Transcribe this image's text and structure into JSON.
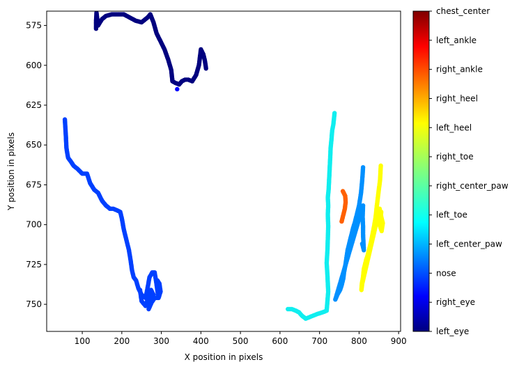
{
  "chart_data": {
    "type": "scatter",
    "title": "",
    "xlabel": "X position in pixels",
    "ylabel": "Y position in pixels",
    "xlim": [
      10,
      905
    ],
    "ylim": [
      767,
      566
    ],
    "y_inverted": true,
    "grid": false,
    "colormap": "jet",
    "x_ticks": [
      100,
      200,
      300,
      400,
      500,
      600,
      700,
      800,
      900
    ],
    "y_ticks": [
      575,
      600,
      625,
      650,
      675,
      700,
      725,
      750
    ],
    "colorbar_labels": [
      "left_eye",
      "right_eye",
      "nose",
      "left_center_paw",
      "left_toe",
      "right_center_paw",
      "right_toe",
      "left_heel",
      "right_heel",
      "right_ankle",
      "left_ankle",
      "chest_center"
    ],
    "series": [
      {
        "name": "left_eye",
        "color": "#00007f",
        "points": [
          [
            135,
            577
          ],
          [
            135,
            572
          ],
          [
            136,
            567
          ],
          [
            140,
            575
          ],
          [
            150,
            571
          ],
          [
            160,
            569
          ],
          [
            175,
            568
          ],
          [
            190,
            568
          ],
          [
            205,
            568
          ],
          [
            220,
            570
          ],
          [
            235,
            572
          ],
          [
            250,
            573
          ],
          [
            265,
            570
          ],
          [
            272,
            568
          ],
          [
            280,
            573
          ],
          [
            288,
            580
          ],
          [
            298,
            585
          ],
          [
            308,
            590
          ],
          [
            318,
            597
          ],
          [
            325,
            603
          ],
          [
            328,
            610
          ],
          [
            335,
            611
          ],
          [
            345,
            612
          ],
          [
            352,
            610
          ],
          [
            360,
            609
          ],
          [
            368,
            609
          ],
          [
            378,
            610
          ],
          [
            388,
            606
          ],
          [
            395,
            600
          ],
          [
            398,
            594
          ],
          [
            400,
            590
          ],
          [
            406,
            593
          ],
          [
            410,
            597
          ],
          [
            413,
            602
          ]
        ]
      },
      {
        "name": "right_eye",
        "color": "#0000ff",
        "points": [
          [
            340,
            615
          ]
        ]
      },
      {
        "name": "nose",
        "color": "#0040ff",
        "points": [
          [
            56,
            634
          ],
          [
            58,
            642
          ],
          [
            60,
            652
          ],
          [
            64,
            658
          ],
          [
            70,
            660
          ],
          [
            78,
            663
          ],
          [
            88,
            665
          ],
          [
            100,
            668
          ],
          [
            112,
            668
          ],
          [
            120,
            674
          ],
          [
            130,
            678
          ],
          [
            140,
            680
          ],
          [
            150,
            685
          ],
          [
            160,
            688
          ],
          [
            170,
            690
          ],
          [
            178,
            690
          ],
          [
            188,
            691
          ],
          [
            196,
            692
          ],
          [
            200,
            696
          ],
          [
            205,
            703
          ],
          [
            210,
            708
          ],
          [
            214,
            712
          ],
          [
            218,
            716
          ],
          [
            222,
            722
          ],
          [
            226,
            729
          ],
          [
            230,
            733
          ],
          [
            236,
            735
          ],
          [
            242,
            740
          ],
          [
            250,
            744
          ],
          [
            260,
            746
          ],
          [
            265,
            740
          ],
          [
            270,
            733
          ],
          [
            277,
            730
          ],
          [
            283,
            730
          ],
          [
            287,
            736
          ],
          [
            292,
            745
          ],
          [
            290,
            735
          ],
          [
            295,
            737
          ],
          [
            298,
            742
          ],
          [
            293,
            746
          ],
          [
            283,
            746
          ],
          [
            275,
            749
          ],
          [
            268,
            753
          ],
          [
            275,
            747
          ],
          [
            280,
            744
          ],
          [
            274,
            741
          ],
          [
            268,
            745
          ],
          [
            260,
            751
          ],
          [
            250,
            748
          ],
          [
            246,
            741
          ]
        ]
      },
      {
        "name": "left_center_paw",
        "color": "#0090ff",
        "points": [
          [
            810,
            664
          ],
          [
            808,
            672
          ],
          [
            805,
            680
          ],
          [
            800,
            688
          ],
          [
            795,
            693
          ],
          [
            790,
            698
          ],
          [
            785,
            702
          ],
          [
            780,
            707
          ],
          [
            775,
            712
          ],
          [
            771,
            716
          ],
          [
            768,
            721
          ],
          [
            765,
            726
          ],
          [
            762,
            730
          ],
          [
            760,
            734
          ],
          [
            756,
            738
          ],
          [
            752,
            741
          ],
          [
            745,
            744
          ],
          [
            740,
            747
          ],
          [
            810,
            688
          ],
          [
            809,
            695
          ],
          [
            810,
            701
          ],
          [
            810,
            706
          ],
          [
            811,
            711
          ],
          [
            812,
            716
          ],
          [
            808,
            712
          ]
        ]
      },
      {
        "name": "left_toe",
        "color": "#10eeef",
        "points": [
          [
            620,
            753
          ],
          [
            630,
            753
          ],
          [
            640,
            754
          ],
          [
            648,
            755
          ],
          [
            655,
            757
          ],
          [
            665,
            759
          ],
          [
            675,
            758
          ],
          [
            685,
            757
          ],
          [
            695,
            756
          ],
          [
            708,
            755
          ],
          [
            718,
            754
          ],
          [
            722,
            742
          ],
          [
            720,
            732
          ],
          [
            718,
            724
          ],
          [
            720,
            716
          ],
          [
            721,
            709
          ],
          [
            722,
            701
          ],
          [
            721,
            694
          ],
          [
            722,
            688
          ],
          [
            721,
            683
          ],
          [
            723,
            678
          ],
          [
            724,
            673
          ],
          [
            725,
            668
          ],
          [
            726,
            663
          ],
          [
            727,
            658
          ],
          [
            728,
            652
          ],
          [
            730,
            647
          ],
          [
            732,
            641
          ],
          [
            735,
            637
          ],
          [
            738,
            630
          ]
        ]
      },
      {
        "name": "left_heel",
        "color": "#ffff00",
        "points": [
          [
            855,
            663
          ],
          [
            853,
            672
          ],
          [
            849,
            680
          ],
          [
            845,
            688
          ],
          [
            842,
            695
          ],
          [
            838,
            701
          ],
          [
            834,
            706
          ],
          [
            830,
            711
          ],
          [
            826,
            715
          ],
          [
            822,
            719
          ],
          [
            818,
            722
          ],
          [
            815,
            725
          ],
          [
            812,
            728
          ],
          [
            810,
            733
          ],
          [
            807,
            737
          ],
          [
            806,
            741
          ],
          [
            808,
            737
          ],
          [
            852,
            690
          ],
          [
            856,
            695
          ],
          [
            860,
            699
          ],
          [
            857,
            704
          ],
          [
            853,
            701
          ],
          [
            856,
            692
          ]
        ]
      },
      {
        "name": "right_heel",
        "color": "#ff6000",
        "points": [
          [
            756,
            698
          ],
          [
            760,
            694
          ],
          [
            764,
            690
          ],
          [
            766,
            686
          ],
          [
            765,
            682
          ],
          [
            759,
            679
          ]
        ]
      },
      {
        "name": "right_ankle",
        "color": "#ff2000",
        "points": []
      },
      {
        "name": "left_ankle",
        "color": "#ff0000",
        "points": []
      },
      {
        "name": "chest_center",
        "color": "#800000",
        "points": []
      }
    ]
  }
}
